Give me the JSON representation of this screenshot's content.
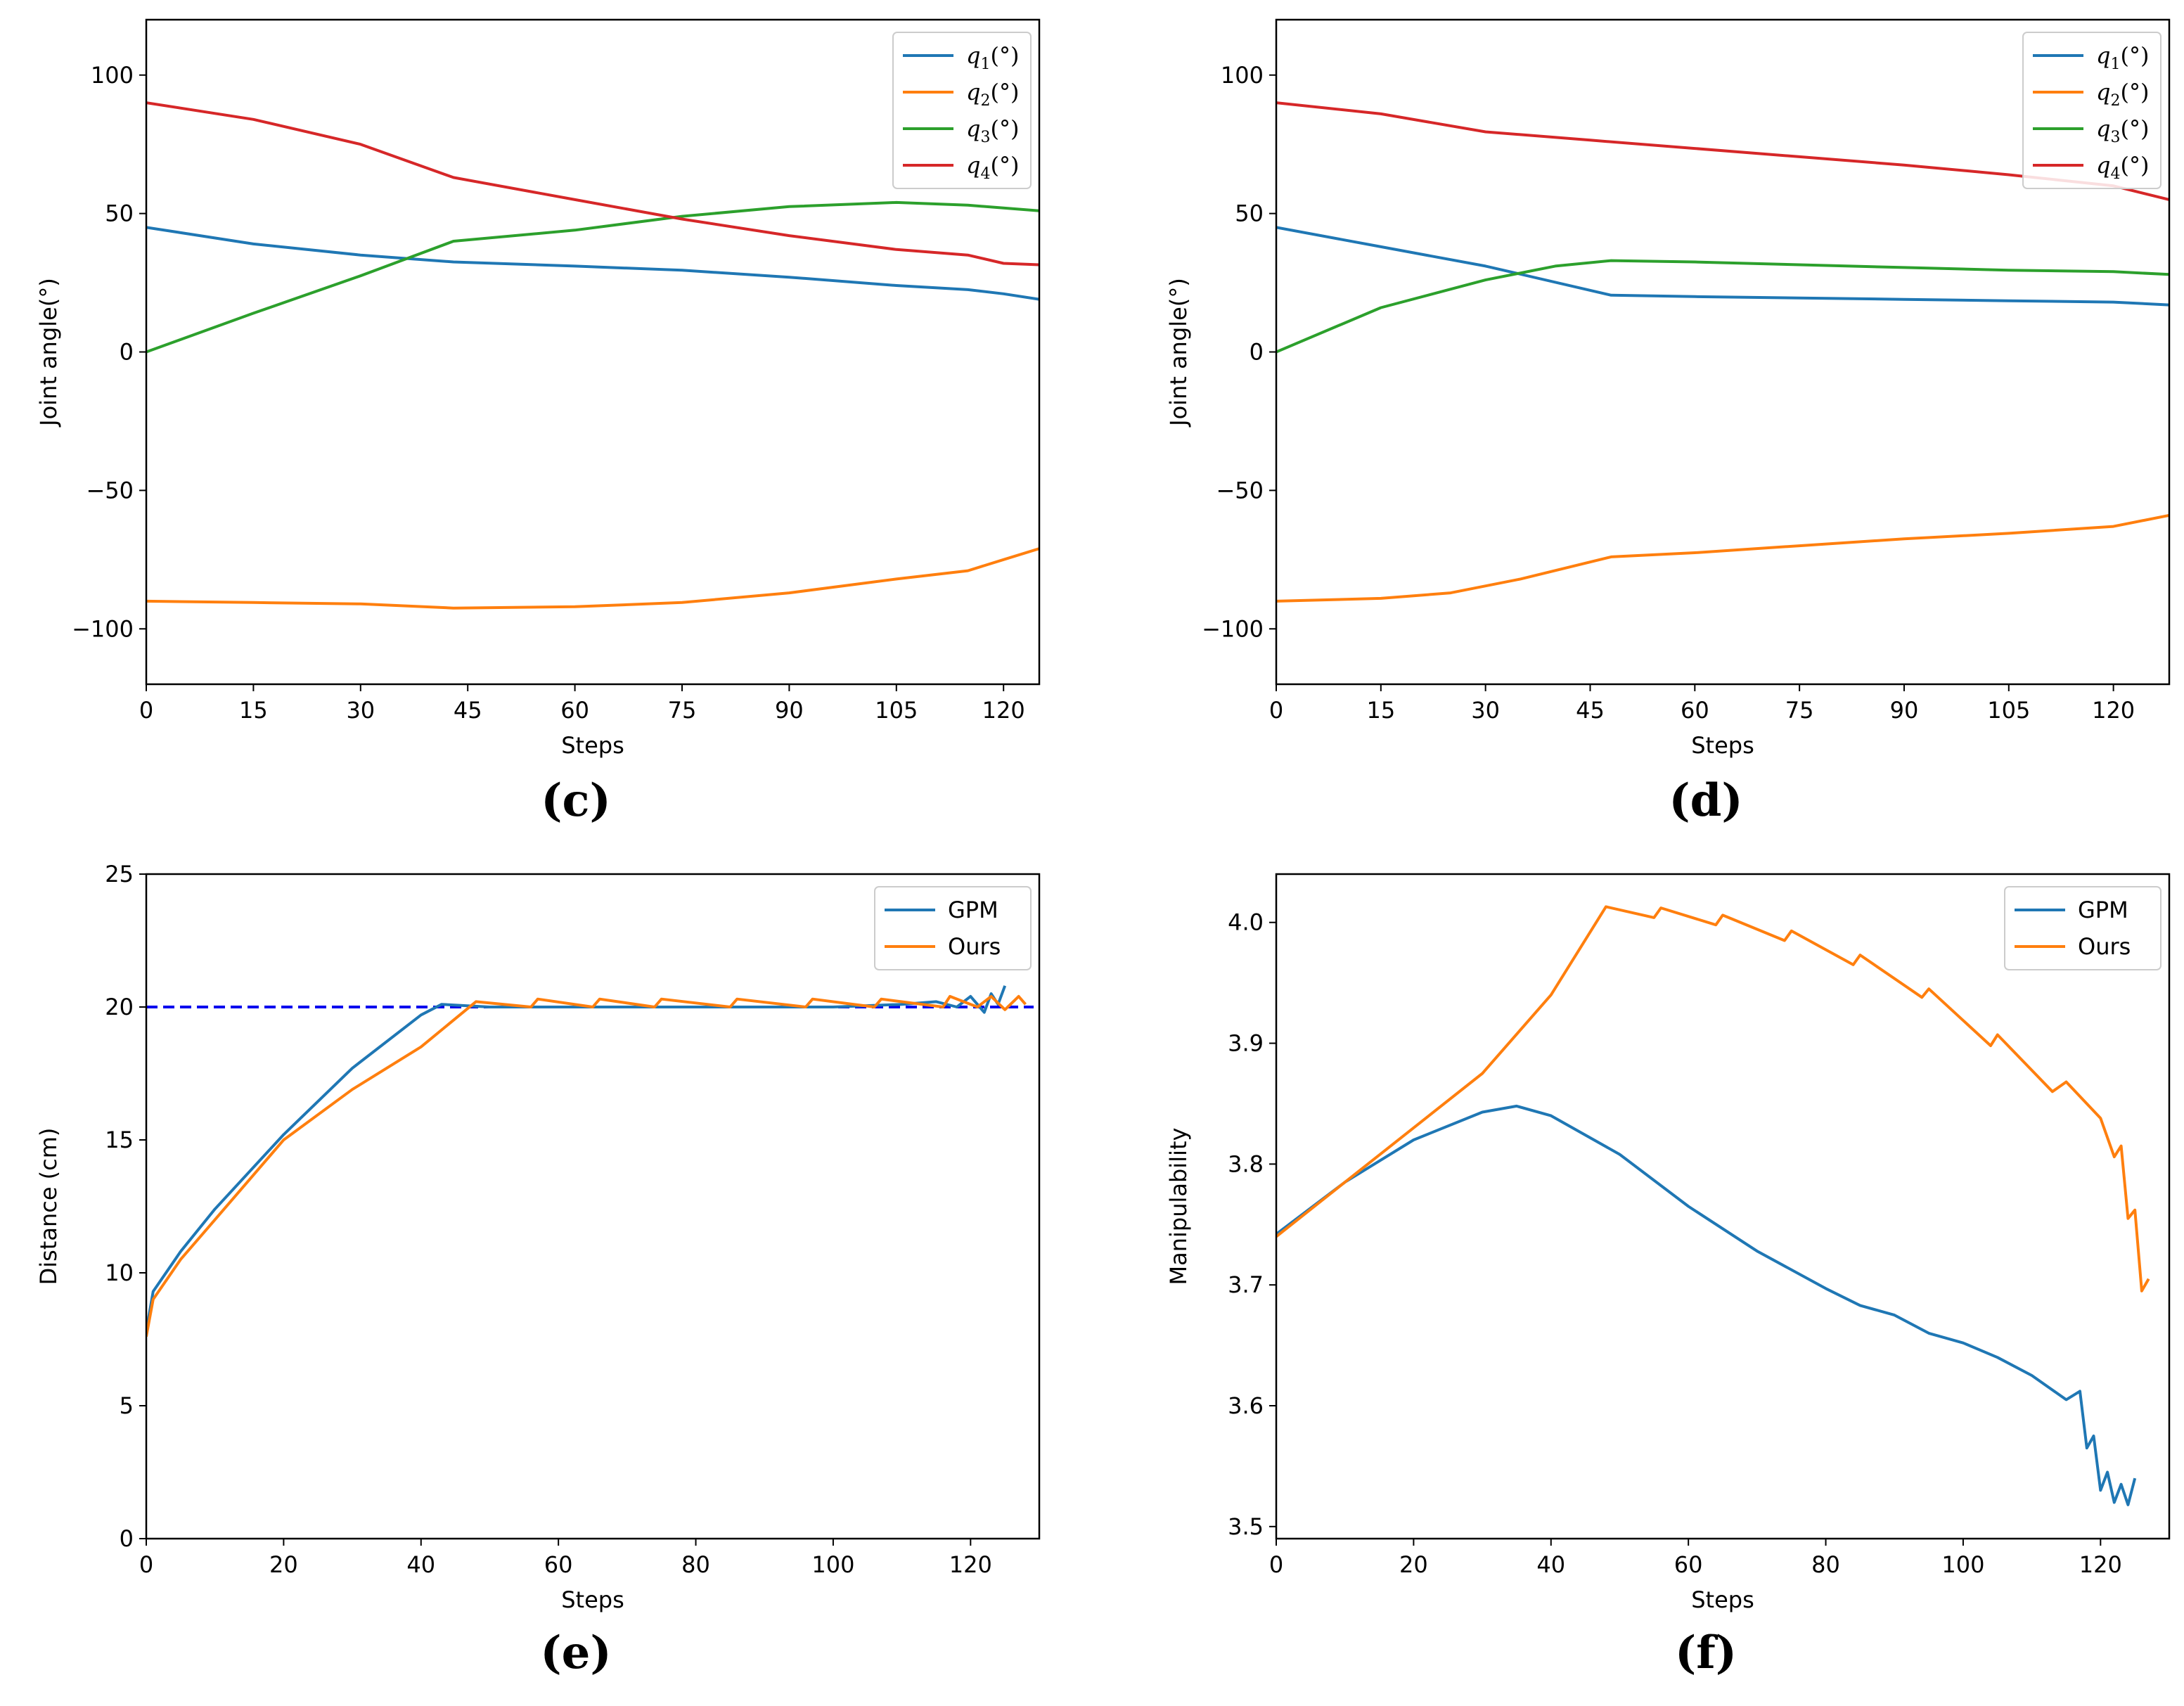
{
  "colors": {
    "blue": "#1f77b4",
    "orange": "#ff7f0e",
    "green": "#2ca02c",
    "red": "#d62728",
    "reference": "#0000ee"
  },
  "chart_data": [
    {
      "id": "c",
      "panel_label": "(c)",
      "type": "line",
      "xlabel": "Steps",
      "ylabel": "Joint angle(°)",
      "xlim": [
        0,
        125
      ],
      "ylim": [
        -120,
        120
      ],
      "xticks": [
        0,
        15,
        30,
        45,
        60,
        75,
        90,
        105,
        120
      ],
      "yticks": [
        -100,
        -50,
        0,
        50,
        100
      ],
      "ytick_labels": [
        "−100",
        "−50",
        "0",
        "50",
        "100"
      ],
      "legend_position": "top-right",
      "series": [
        {
          "name": "q1(°)",
          "sym": "q",
          "sub": "1",
          "unit": "(°)",
          "color": "#1f77b4",
          "x": [
            0,
            15,
            30,
            43,
            60,
            75,
            90,
            105,
            115,
            120,
            125
          ],
          "y": [
            45,
            39,
            35,
            32.5,
            31,
            29.5,
            27,
            24,
            22.5,
            21,
            19
          ]
        },
        {
          "name": "q2(°)",
          "sym": "q",
          "sub": "2",
          "unit": "(°)",
          "color": "#ff7f0e",
          "x": [
            0,
            15,
            30,
            43,
            60,
            75,
            90,
            105,
            115,
            120,
            125
          ],
          "y": [
            -90,
            -90.5,
            -91,
            -92.5,
            -92,
            -90.5,
            -87,
            -82,
            -79,
            -75,
            -71
          ]
        },
        {
          "name": "q3(°)",
          "sym": "q",
          "sub": "3",
          "unit": "(°)",
          "color": "#2ca02c",
          "x": [
            0,
            15,
            30,
            43,
            60,
            75,
            90,
            105,
            115,
            120,
            125
          ],
          "y": [
            0,
            14,
            27.5,
            40,
            44,
            49,
            52.5,
            54,
            53,
            52,
            51
          ]
        },
        {
          "name": "q4(°)",
          "sym": "q",
          "sub": "4",
          "unit": "(°)",
          "color": "#d62728",
          "x": [
            0,
            15,
            30,
            43,
            60,
            75,
            90,
            105,
            115,
            120,
            125
          ],
          "y": [
            90,
            84,
            75,
            63,
            55,
            48,
            42,
            37,
            35,
            32,
            31.5
          ]
        }
      ]
    },
    {
      "id": "d",
      "panel_label": "(d)",
      "type": "line",
      "xlabel": "Steps",
      "ylabel": "Joint angle(°)",
      "xlim": [
        0,
        128
      ],
      "ylim": [
        -120,
        120
      ],
      "xticks": [
        0,
        15,
        30,
        45,
        60,
        75,
        90,
        105,
        120
      ],
      "yticks": [
        -100,
        -50,
        0,
        50,
        100
      ],
      "ytick_labels": [
        "−100",
        "−50",
        "0",
        "50",
        "100"
      ],
      "legend_position": "top-right",
      "series": [
        {
          "name": "q1(°)",
          "sym": "q",
          "sub": "1",
          "unit": "(°)",
          "color": "#1f77b4",
          "x": [
            0,
            15,
            30,
            48,
            60,
            75,
            90,
            105,
            120,
            128
          ],
          "y": [
            45,
            38,
            31,
            20.5,
            20,
            19.5,
            19,
            18.5,
            18,
            17
          ]
        },
        {
          "name": "q2(°)",
          "sym": "q",
          "sub": "2",
          "unit": "(°)",
          "color": "#ff7f0e",
          "x": [
            0,
            15,
            25,
            35,
            48,
            60,
            75,
            90,
            105,
            120,
            128
          ],
          "y": [
            -90,
            -89,
            -87,
            -82,
            -74,
            -72.5,
            -70,
            -67.5,
            -65.5,
            -63,
            -59
          ]
        },
        {
          "name": "q3(°)",
          "sym": "q",
          "sub": "3",
          "unit": "(°)",
          "color": "#2ca02c",
          "x": [
            0,
            15,
            30,
            40,
            48,
            60,
            75,
            90,
            105,
            120,
            128
          ],
          "y": [
            0,
            16,
            26,
            31,
            33,
            32.5,
            31.5,
            30.5,
            29.5,
            29,
            28
          ]
        },
        {
          "name": "q4(°)",
          "sym": "q",
          "sub": "4",
          "unit": "(°)",
          "color": "#d62728",
          "x": [
            0,
            15,
            30,
            45,
            60,
            75,
            90,
            105,
            120,
            128
          ],
          "y": [
            90,
            86,
            79.5,
            76.5,
            73.5,
            70.5,
            67.5,
            64,
            60,
            55
          ]
        }
      ]
    },
    {
      "id": "e",
      "panel_label": "(e)",
      "type": "line",
      "xlabel": "Steps",
      "ylabel": "Distance (cm)",
      "xlim": [
        0,
        130
      ],
      "ylim": [
        0,
        25
      ],
      "xticks": [
        0,
        20,
        40,
        60,
        80,
        100,
        120
      ],
      "yticks": [
        0,
        5,
        10,
        15,
        20,
        25
      ],
      "ytick_labels": [
        "0",
        "5",
        "10",
        "15",
        "20",
        "25"
      ],
      "legend_position": "top-right",
      "reference_line": {
        "y": 20,
        "style": "dashed",
        "color": "#0000ee"
      },
      "series": [
        {
          "name": "GPM",
          "color": "#1f77b4",
          "x": [
            0,
            1,
            5,
            10,
            20,
            30,
            40,
            43,
            50,
            60,
            70,
            80,
            90,
            100,
            110,
            115,
            118,
            120,
            122,
            123,
            124,
            125
          ],
          "y": [
            7.8,
            9.3,
            10.8,
            12.4,
            15.2,
            17.7,
            19.7,
            20.1,
            20.0,
            20.0,
            20.0,
            20.0,
            20.0,
            20.0,
            20.1,
            20.2,
            20.0,
            20.4,
            19.8,
            20.5,
            20.1,
            20.8
          ]
        },
        {
          "name": "Ours",
          "color": "#ff7f0e",
          "x": [
            0,
            1,
            5,
            10,
            20,
            30,
            40,
            48,
            56,
            57,
            65,
            66,
            74,
            75,
            85,
            86,
            96,
            97,
            106,
            107,
            116,
            117,
            121,
            123,
            125,
            127,
            128
          ],
          "y": [
            7.6,
            9.0,
            10.5,
            12.0,
            15.0,
            16.9,
            18.5,
            20.2,
            20.0,
            20.3,
            20.0,
            20.3,
            20.0,
            20.3,
            20.0,
            20.3,
            20.0,
            20.3,
            20.0,
            20.3,
            20.0,
            20.4,
            20.0,
            20.4,
            19.9,
            20.4,
            20.1
          ]
        }
      ]
    },
    {
      "id": "f",
      "panel_label": "(f)",
      "type": "line",
      "xlabel": "Steps",
      "ylabel": "Manipulability",
      "xlim": [
        0,
        130
      ],
      "ylim": [
        3.49,
        4.04
      ],
      "xticks": [
        0,
        20,
        40,
        60,
        80,
        100,
        120
      ],
      "yticks": [
        3.5,
        3.6,
        3.7,
        3.8,
        3.9,
        4.0
      ],
      "ytick_labels": [
        "3.5",
        "3.6",
        "3.7",
        "3.8",
        "3.9",
        "4.0"
      ],
      "legend_position": "top-right",
      "series": [
        {
          "name": "GPM",
          "color": "#1f77b4",
          "x": [
            0,
            10,
            20,
            30,
            35,
            40,
            50,
            60,
            70,
            80,
            85,
            90,
            95,
            100,
            105,
            110,
            115,
            117,
            118,
            119,
            120,
            121,
            122,
            123,
            124,
            125
          ],
          "y": [
            3.742,
            3.785,
            3.82,
            3.843,
            3.848,
            3.84,
            3.808,
            3.765,
            3.728,
            3.697,
            3.683,
            3.675,
            3.66,
            3.652,
            3.64,
            3.625,
            3.605,
            3.612,
            3.565,
            3.575,
            3.53,
            3.545,
            3.52,
            3.535,
            3.518,
            3.54
          ]
        },
        {
          "name": "Ours",
          "color": "#ff7f0e",
          "x": [
            0,
            10,
            20,
            30,
            40,
            48,
            55,
            56,
            64,
            65,
            74,
            75,
            84,
            85,
            94,
            95,
            104,
            105,
            113,
            115,
            120,
            122,
            123,
            124,
            125,
            126,
            127
          ],
          "y": [
            3.74,
            3.785,
            3.83,
            3.875,
            3.94,
            4.013,
            4.004,
            4.012,
            3.998,
            4.006,
            3.985,
            3.993,
            3.965,
            3.973,
            3.938,
            3.945,
            3.898,
            3.907,
            3.86,
            3.868,
            3.838,
            3.806,
            3.815,
            3.755,
            3.762,
            3.695,
            3.705
          ]
        }
      ]
    }
  ]
}
